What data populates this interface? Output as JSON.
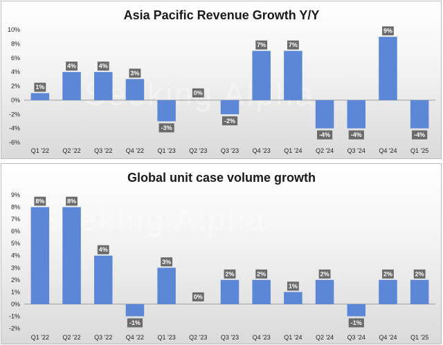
{
  "colors": {
    "bar": "#5b87d6",
    "label_bg": "#6a6a6a",
    "axis": "#9a9a9a"
  },
  "watermark": "Seeking Alpha",
  "chart_data": [
    {
      "type": "bar",
      "title": "Asia Pacific Revenue Growth Y/Y",
      "categories": [
        "Q1 '22",
        "Q2 '22",
        "Q3 '22",
        "Q4 '22",
        "Q1 '23",
        "Q2 '23",
        "Q3 '23",
        "Q4 '23",
        "Q1 '24",
        "Q2 '24",
        "Q3 '24",
        "Q4 '24",
        "Q1 '25"
      ],
      "values": [
        1,
        4,
        4,
        3,
        -3,
        0,
        -2,
        7,
        7,
        -4,
        -4,
        9,
        -4
      ],
      "data_labels": [
        "1%",
        "4%",
        "4%",
        "3%",
        "-3%",
        "0%",
        "-2%",
        "7%",
        "7%",
        "-4%",
        "-4%",
        "9%",
        "-4%"
      ],
      "yticks": [
        -6,
        -4,
        -2,
        0,
        2,
        4,
        6,
        8,
        10
      ],
      "ytick_labels": [
        "-6%",
        "-4%",
        "-2%",
        "0%",
        "2%",
        "4%",
        "6%",
        "8%",
        "10%"
      ],
      "ylim": [
        -6,
        10
      ],
      "grid": false,
      "legend": "none"
    },
    {
      "type": "bar",
      "title": "Global unit case volume growth",
      "categories": [
        "Q1 '22",
        "Q2 '22",
        "Q3 '22",
        "Q4 '22",
        "Q1 '23",
        "Q2 '23",
        "Q3 '23",
        "Q4 '23",
        "Q1 '24",
        "Q2 '24",
        "Q3 '24",
        "Q4 '24",
        "Q1 '25"
      ],
      "values": [
        8,
        8,
        4,
        -1,
        3,
        0,
        2,
        2,
        1,
        2,
        -1,
        2,
        2
      ],
      "data_labels": [
        "8%",
        "8%",
        "4%",
        "-1%",
        "3%",
        "0%",
        "2%",
        "2%",
        "1%",
        "2%",
        "-1%",
        "2%",
        "2%"
      ],
      "yticks": [
        -2,
        -1,
        0,
        1,
        2,
        3,
        4,
        5,
        6,
        7,
        8,
        9
      ],
      "ytick_labels": [
        "-2%",
        "-1%",
        "0%",
        "1%",
        "2%",
        "3%",
        "4%",
        "5%",
        "6%",
        "7%",
        "8%",
        "9%"
      ],
      "ylim": [
        -2,
        9
      ],
      "grid": false,
      "legend": "none"
    }
  ]
}
